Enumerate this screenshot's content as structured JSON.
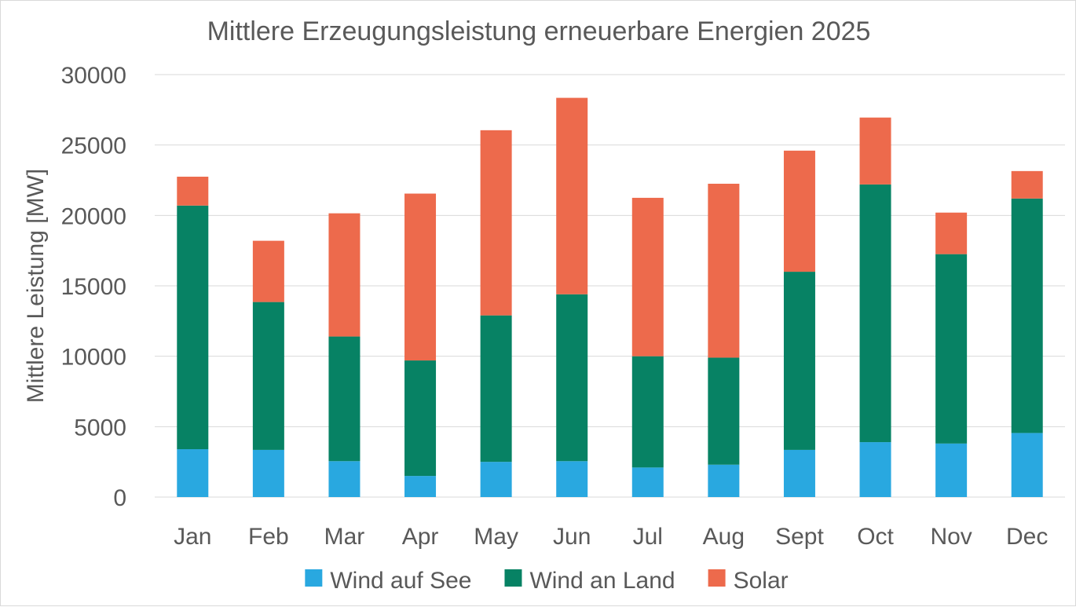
{
  "chart_data": {
    "type": "bar",
    "stacked": true,
    "title": "Mittlere Erzeugungsleistung erneuerbare Energien 2025",
    "xlabel": "",
    "ylabel": "Mittlere Leistung [MW]",
    "ylim": [
      0,
      30000
    ],
    "yticks": [
      0,
      5000,
      10000,
      15000,
      20000,
      25000,
      30000
    ],
    "grid": true,
    "legend_position": "bottom",
    "categories": [
      "Jan",
      "Feb",
      "Mar",
      "Apr",
      "May",
      "Jun",
      "Jul",
      "Aug",
      "Sept",
      "Oct",
      "Nov",
      "Dec"
    ],
    "series": [
      {
        "name": "Wind auf See",
        "color": "#29a8e0",
        "values": [
          3400,
          3350,
          2550,
          1500,
          2500,
          2550,
          2100,
          2300,
          3350,
          3900,
          3800,
          4550
        ]
      },
      {
        "name": "Wind an Land",
        "color": "#078264",
        "values": [
          17300,
          10500,
          8850,
          8200,
          10400,
          11850,
          7900,
          7600,
          12650,
          18300,
          13450,
          16650
        ]
      },
      {
        "name": "Solar",
        "color": "#ed6a4c",
        "values": [
          2050,
          4350,
          8750,
          11850,
          13150,
          13950,
          11250,
          12350,
          8600,
          4750,
          2950,
          1950
        ]
      }
    ]
  }
}
